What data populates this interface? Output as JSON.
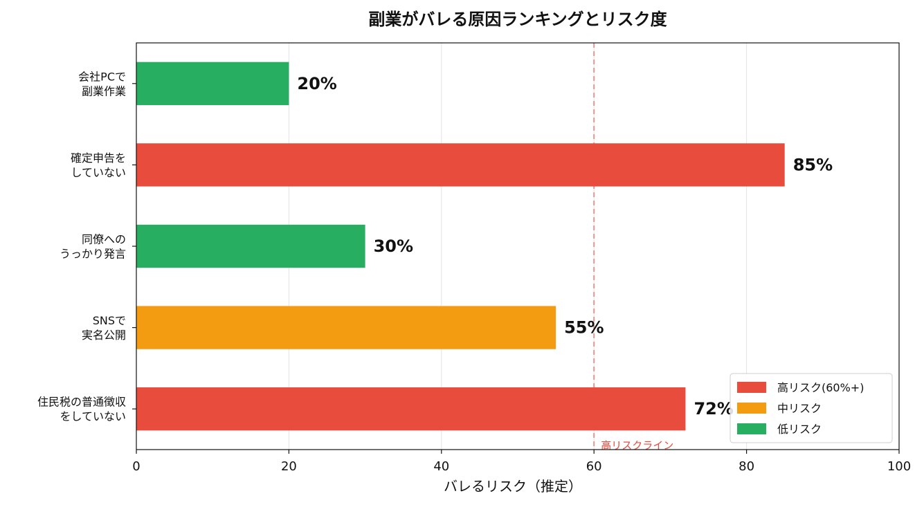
{
  "chart_data": {
    "type": "bar",
    "orientation": "horizontal",
    "title": "副業がバレる原因ランキングとリスク度",
    "xlabel": "バレるリスク（推定）",
    "ylabel": "",
    "xlim": [
      0,
      100
    ],
    "xticks": [
      0,
      20,
      40,
      60,
      80,
      100
    ],
    "grid": "x",
    "categories": [
      [
        "会社PCで",
        "副業作業"
      ],
      [
        "確定申告を",
        "していない"
      ],
      [
        "同僚への",
        "うっかり発言"
      ],
      [
        "SNSで",
        "実名公開"
      ],
      [
        "住民税の普通徴収",
        "をしていない"
      ]
    ],
    "values": [
      20,
      85,
      30,
      55,
      72
    ],
    "value_labels": [
      "20%",
      "85%",
      "30%",
      "55%",
      "72%"
    ],
    "risk": [
      "low",
      "high",
      "low",
      "mid",
      "high"
    ],
    "colors": {
      "high": "#e74c3c",
      "mid": "#f39c12",
      "low": "#27ae60"
    },
    "reference_line": {
      "value": 60,
      "label": "高リスクライン",
      "color": "#e74c3c"
    },
    "legend": {
      "position": "lower-right",
      "items": [
        {
          "key": "high",
          "label": "高リスク(60%+)"
        },
        {
          "key": "mid",
          "label": "中リスク"
        },
        {
          "key": "low",
          "label": "低リスク"
        }
      ]
    }
  }
}
